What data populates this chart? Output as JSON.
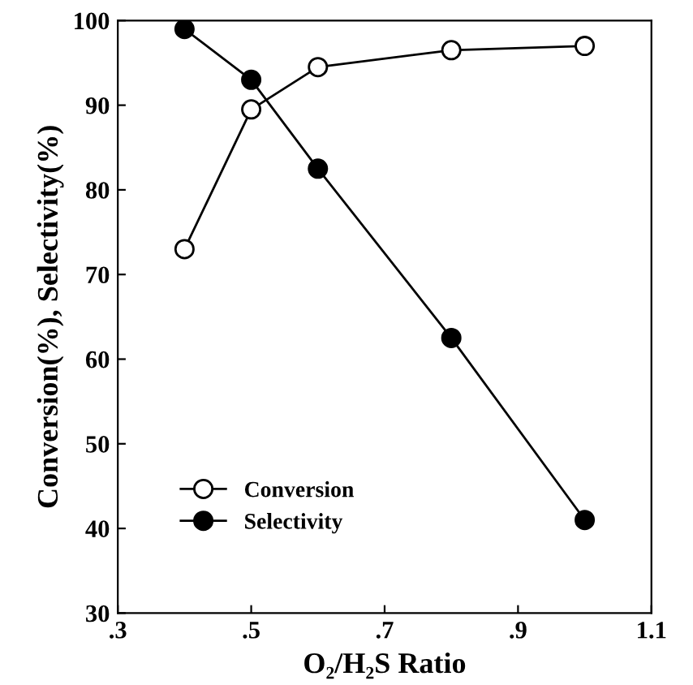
{
  "chart_data": {
    "type": "line",
    "xlabel": "O₂/H₂S Ratio",
    "ylabel": "Conversion(%), Selectivity(%)",
    "x": [
      0.4,
      0.5,
      0.6,
      0.8,
      1.0
    ],
    "series": [
      {
        "name": "Conversion",
        "color": "#000000",
        "marker": "circle",
        "values": [
          73,
          89.5,
          94.5,
          96.5,
          97
        ]
      },
      {
        "name": "Selectivity",
        "color": "#000000",
        "marker": "circle",
        "values": [
          99,
          93,
          82.5,
          62.5,
          41
        ]
      }
    ],
    "xlim": [
      0.3,
      1.1
    ],
    "xticks": [
      {
        "value": 0.3,
        "label": ".3"
      },
      {
        "value": 0.5,
        "label": ".5"
      },
      {
        "value": 0.7,
        "label": ".7"
      },
      {
        "value": 0.9,
        "label": ".9"
      },
      {
        "value": 1.1,
        "label": "1.1"
      }
    ],
    "ylim": [
      30,
      100
    ],
    "yticks": [
      30,
      40,
      50,
      60,
      70,
      80,
      90,
      100
    ],
    "grid": false,
    "legend": "bottom left",
    "line_style": "solid"
  }
}
